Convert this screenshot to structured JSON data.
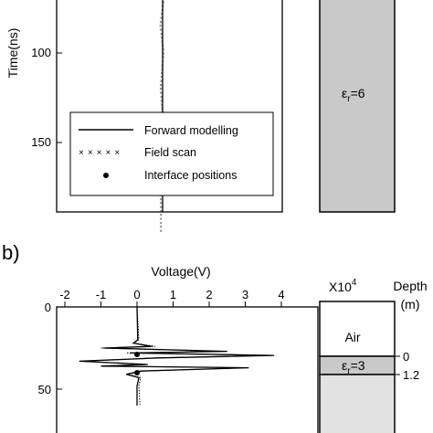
{
  "panel_b_label": "b)",
  "top_y_ticks": [
    "100",
    "150"
  ],
  "top_y_label": "Time(ns)",
  "top_permittivity": "6",
  "epsilon_symbol": "ε",
  "epsilon_sub": "r",
  "legend": {
    "forward": "Forward modelling",
    "field": "Field scan",
    "interface": "Interface positions"
  },
  "bottom_x_label": "Voltage(V)",
  "bottom_x_ticks": [
    "-2",
    "-1",
    "0",
    "1",
    "2",
    "3",
    "4"
  ],
  "bottom_y_ticks": [
    "0",
    "50"
  ],
  "scale_text": "X10",
  "scale_exp": "4",
  "depth_label": "Depth",
  "depth_unit": "(m)",
  "air_label": "Air",
  "layer_permittivity": "3",
  "depth_ticks": [
    "0",
    "1.2"
  ],
  "colors": {
    "layer_gray": "#c9c9c9",
    "halfspace_gray": "#e2e2e2"
  },
  "chart_data": [
    {
      "type": "line",
      "panel": "a",
      "ylabel": "Time(ns)",
      "ylim": [
        60,
        190
      ],
      "yticks": [
        100,
        150
      ],
      "series": [
        {
          "name": "Forward modelling",
          "x": [
            0,
            0,
            0,
            0
          ],
          "y": [
            60,
            100,
            150,
            190
          ]
        },
        {
          "name": "Field scan",
          "x": [
            0.05,
            -0.05,
            0.04,
            -0.04,
            0.03,
            -0.03
          ],
          "y": [
            60,
            75,
            90,
            110,
            130,
            150
          ]
        }
      ]
    },
    {
      "type": "line",
      "panel": "b",
      "xlabel": "Voltage(V)",
      "ylabel": "Time(ns)",
      "xlim": [
        -2.7,
        4
      ],
      "xticks": [
        -2,
        -1,
        0,
        1,
        2,
        3,
        4
      ],
      "ylim": [
        0,
        60
      ],
      "yticks": [
        0,
        50
      ],
      "series": [
        {
          "name": "Forward modelling",
          "x": [
            0,
            0.02,
            -0.1,
            0.4,
            -0.9,
            2.5,
            -0.2,
            3.8,
            0.6,
            -1.6,
            0.3,
            -1.0,
            3.1,
            0.1,
            -0.3,
            0.05,
            0,
            0
          ],
          "y": [
            0,
            20,
            22,
            24,
            25,
            27,
            28,
            29.5,
            31,
            33,
            35,
            36,
            37,
            39,
            41,
            43,
            48,
            60
          ]
        },
        {
          "name": "Field scan",
          "x": [
            0,
            0.05,
            -0.1,
            0.5,
            -1.0,
            2.3,
            -0.3,
            3.7,
            0.5,
            -1.5,
            0.2,
            -1.0,
            3.0,
            0.15,
            -0.25,
            0.1,
            0.05,
            0.08
          ],
          "y": [
            0,
            20,
            22,
            24,
            25,
            27,
            28,
            29.5,
            31,
            33,
            35,
            36,
            37,
            39,
            41,
            43,
            48,
            60
          ]
        },
        {
          "name": "Interface positions",
          "x": [
            0,
            0
          ],
          "y": [
            28.5,
            40
          ]
        }
      ],
      "depth_axis": {
        "label": "Depth",
        "unit": "(m)",
        "ticks": [
          0,
          1.2
        ]
      },
      "layers": [
        {
          "label": "Air"
        },
        {
          "permittivity": 3
        },
        {
          "label": ""
        }
      ]
    }
  ]
}
